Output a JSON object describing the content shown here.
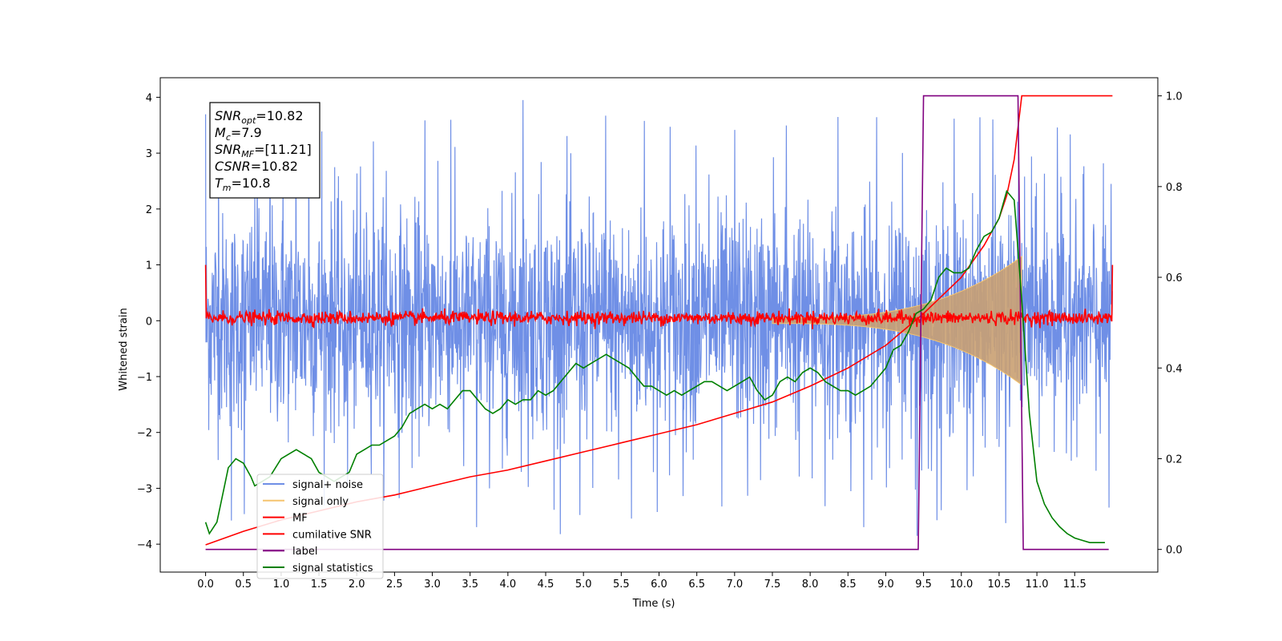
{
  "chart_data": {
    "type": "line",
    "xlabel": "Time (s)",
    "ylabel_left": "Whitened strain",
    "xlim": [
      -0.6,
      12.6
    ],
    "ylim_left": [
      -4.5,
      4.35
    ],
    "ylim_right": [
      -0.05,
      1.04
    ],
    "x_ticks": [
      "0.0",
      "0.5",
      "1.0",
      "1.5",
      "2.0",
      "2.5",
      "3.0",
      "3.5",
      "4.0",
      "4.5",
      "5.0",
      "5.5",
      "6.0",
      "6.5",
      "7.0",
      "7.5",
      "8.0",
      "8.5",
      "9.0",
      "9.5",
      "10.0",
      "10.5",
      "11.0",
      "11.5"
    ],
    "y_ticks_left": [
      "4",
      "3",
      "2",
      "1",
      "0",
      "−1",
      "−2",
      "−3",
      "−4"
    ],
    "y_ticks_right": [
      "1.0",
      "0.8",
      "0.6",
      "0.4",
      "0.2",
      "0.0"
    ],
    "info_box": {
      "lines": [
        {
          "sym": "SNR",
          "sub": "opt",
          "val": "=10.82"
        },
        {
          "sym": "M",
          "sub": "c",
          "val": "=7.9"
        },
        {
          "sym": "SNR",
          "sub": "MF",
          "val": "=[11.21]"
        },
        {
          "sym": "CSNR",
          "sub": "",
          "val": "=10.82"
        },
        {
          "sym": "T",
          "sub": "m",
          "val": "=10.8"
        }
      ]
    },
    "legend": [
      {
        "label": "signal+ noise",
        "color": "#6f8fe6"
      },
      {
        "label": "signal only",
        "color": "#f5c46e"
      },
      {
        "label": "MF",
        "color": "#ff0000"
      },
      {
        "label": "cumilative SNR",
        "color": "#ff0000"
      },
      {
        "label": "label",
        "color": "#800080"
      },
      {
        "label": "signal statistics",
        "color": "#008000"
      }
    ],
    "series": [
      {
        "name": "signal+ noise",
        "axis": "left",
        "color": "#6f8fe6",
        "x_range": [
          0.0,
          12.0
        ],
        "envelope_std": 0.95,
        "peak_max": 3.95,
        "peak_min": -3.95
      },
      {
        "name": "signal only",
        "axis": "left",
        "color": "#f5c46e",
        "x_range": [
          7.5,
          10.8
        ],
        "amplitude_at_end": 1.1
      },
      {
        "name": "MF",
        "axis": "left",
        "color": "#ff0000",
        "x_range": [
          0.0,
          12.0
        ],
        "level": 0.05,
        "edge_value": 1.0
      },
      {
        "name": "cumilative SNR",
        "axis": "right",
        "color": "#ff0000",
        "x": [
          0.0,
          0.5,
          1.0,
          1.5,
          2.0,
          2.5,
          3.0,
          3.5,
          4.0,
          4.5,
          5.0,
          5.5,
          6.0,
          6.5,
          7.0,
          7.5,
          8.0,
          8.5,
          9.0,
          9.5,
          10.0,
          10.3,
          10.5,
          10.6,
          10.7,
          10.8,
          12.0
        ],
        "y": [
          0.01,
          0.04,
          0.065,
          0.085,
          0.105,
          0.12,
          0.14,
          0.16,
          0.175,
          0.195,
          0.215,
          0.235,
          0.255,
          0.275,
          0.3,
          0.325,
          0.36,
          0.4,
          0.45,
          0.52,
          0.6,
          0.67,
          0.73,
          0.78,
          0.86,
          1.0,
          1.0
        ]
      },
      {
        "name": "label",
        "axis": "right",
        "color": "#800080",
        "x": [
          0.0,
          9.43,
          9.5,
          10.75,
          10.82,
          11.95
        ],
        "y": [
          0.0,
          0.0,
          1.0,
          1.0,
          0.0,
          0.0
        ]
      },
      {
        "name": "signal statistics",
        "axis": "right",
        "color": "#008000",
        "x": [
          0.0,
          0.05,
          0.15,
          0.25,
          0.3,
          0.4,
          0.5,
          0.6,
          0.65,
          0.75,
          0.85,
          1.0,
          1.1,
          1.2,
          1.3,
          1.4,
          1.5,
          1.6,
          1.7,
          1.8,
          1.9,
          2.0,
          2.1,
          2.2,
          2.3,
          2.4,
          2.5,
          2.6,
          2.7,
          2.8,
          2.9,
          3.0,
          3.1,
          3.2,
          3.3,
          3.4,
          3.5,
          3.6,
          3.7,
          3.8,
          3.9,
          4.0,
          4.1,
          4.2,
          4.3,
          4.4,
          4.5,
          4.6,
          4.7,
          4.8,
          4.9,
          5.0,
          5.1,
          5.2,
          5.3,
          5.4,
          5.5,
          5.6,
          5.7,
          5.8,
          5.9,
          6.0,
          6.1,
          6.2,
          6.3,
          6.4,
          6.5,
          6.6,
          6.7,
          6.8,
          6.9,
          7.0,
          7.1,
          7.2,
          7.3,
          7.4,
          7.5,
          7.6,
          7.7,
          7.8,
          7.9,
          8.0,
          8.1,
          8.2,
          8.3,
          8.4,
          8.5,
          8.6,
          8.7,
          8.8,
          8.9,
          9.0,
          9.1,
          9.2,
          9.3,
          9.4,
          9.5,
          9.6,
          9.7,
          9.8,
          9.9,
          10.0,
          10.1,
          10.2,
          10.3,
          10.4,
          10.5,
          10.6,
          10.7,
          10.8,
          10.9,
          11.0,
          11.1,
          11.2,
          11.3,
          11.4,
          11.5,
          11.6,
          11.7,
          11.8,
          11.9
        ],
        "y": [
          0.06,
          0.035,
          0.06,
          0.14,
          0.18,
          0.2,
          0.19,
          0.16,
          0.14,
          0.15,
          0.16,
          0.2,
          0.21,
          0.22,
          0.21,
          0.2,
          0.17,
          0.16,
          0.15,
          0.16,
          0.17,
          0.21,
          0.22,
          0.23,
          0.23,
          0.24,
          0.25,
          0.27,
          0.3,
          0.31,
          0.32,
          0.31,
          0.32,
          0.31,
          0.33,
          0.35,
          0.35,
          0.33,
          0.31,
          0.3,
          0.31,
          0.33,
          0.32,
          0.33,
          0.33,
          0.35,
          0.34,
          0.35,
          0.37,
          0.39,
          0.41,
          0.4,
          0.41,
          0.42,
          0.43,
          0.42,
          0.41,
          0.4,
          0.38,
          0.36,
          0.36,
          0.35,
          0.34,
          0.35,
          0.34,
          0.35,
          0.36,
          0.37,
          0.37,
          0.36,
          0.35,
          0.36,
          0.37,
          0.38,
          0.35,
          0.33,
          0.34,
          0.37,
          0.38,
          0.37,
          0.39,
          0.4,
          0.39,
          0.37,
          0.36,
          0.35,
          0.35,
          0.34,
          0.35,
          0.36,
          0.38,
          0.4,
          0.44,
          0.45,
          0.48,
          0.52,
          0.53,
          0.55,
          0.6,
          0.62,
          0.61,
          0.61,
          0.62,
          0.66,
          0.69,
          0.7,
          0.73,
          0.79,
          0.77,
          0.55,
          0.3,
          0.15,
          0.1,
          0.07,
          0.05,
          0.035,
          0.025,
          0.02,
          0.015,
          0.015,
          0.015
        ]
      }
    ]
  }
}
